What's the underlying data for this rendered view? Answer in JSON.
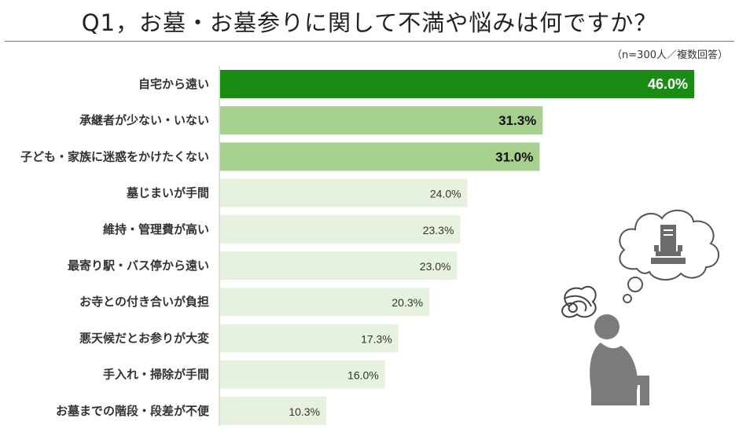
{
  "title": "Q1，お墓・お墓参りに関して不満や悩みは何ですか？",
  "note": "（n=300人／複数回答）",
  "colors": {
    "top": "#1a8c14",
    "mid": "#a6d08e",
    "low": "#e6f1de"
  },
  "chart_data": {
    "type": "bar",
    "orientation": "horizontal",
    "title": "Q1，お墓・お墓参りに関して不満や悩みは何ですか？",
    "unit": "%",
    "categories": [
      "自宅から遠い",
      "承継者が少ない・いない",
      "子ども・家族に迷惑をかけたくない",
      "墓じまいが手間",
      "維持・管理費が高い",
      "最寄り駅・バス停から遠い",
      "お寺との付き合いが負担",
      "悪天候だとお参りが大変",
      "手入れ・掃除が手間",
      "お墓までの階段・段差が不便"
    ],
    "values": [
      46.0,
      31.3,
      31.0,
      24.0,
      23.3,
      23.0,
      20.3,
      17.3,
      16.0,
      10.3
    ],
    "labels": [
      "46.0%",
      "31.3%",
      "31.0%",
      "24.0%",
      "23.3%",
      "23.0%",
      "20.3%",
      "17.3%",
      "16.0%",
      "10.3%"
    ],
    "xlim": [
      0,
      46.0
    ],
    "grid": false,
    "legend": "none"
  }
}
